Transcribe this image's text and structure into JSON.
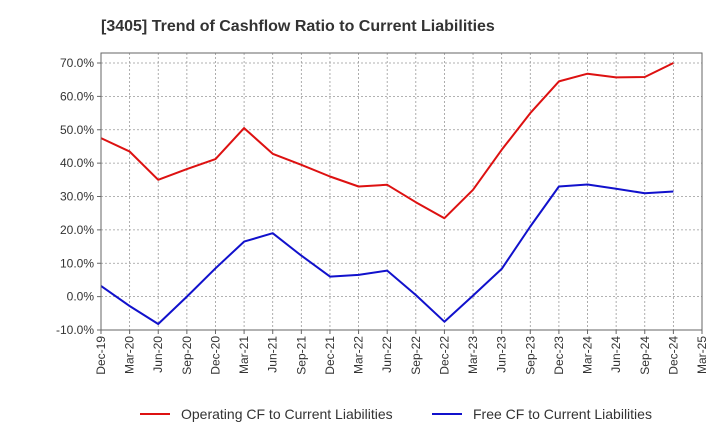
{
  "chart_data": {
    "type": "line",
    "title": "[3405]  Trend of Cashflow Ratio to Current Liabilities",
    "xlabel": "",
    "ylabel": "",
    "categories": [
      "Dec-19",
      "Mar-20",
      "Jun-20",
      "Sep-20",
      "Dec-20",
      "Mar-21",
      "Jun-21",
      "Sep-21",
      "Dec-21",
      "Mar-22",
      "Jun-22",
      "Sep-22",
      "Dec-22",
      "Mar-23",
      "Jun-23",
      "Sep-23",
      "Dec-23",
      "Mar-24",
      "Jun-24",
      "Sep-24",
      "Dec-24",
      "Mar-25"
    ],
    "ylim": [
      -10,
      73
    ],
    "yticks": [
      -10,
      0,
      10,
      20,
      30,
      40,
      50,
      60,
      70
    ],
    "ytick_labels": [
      "-10.0%",
      "0.0%",
      "10.0%",
      "20.0%",
      "30.0%",
      "40.0%",
      "50.0%",
      "60.0%",
      "70.0%"
    ],
    "grid": true,
    "legend_position": "bottom",
    "series": [
      {
        "name": "Operating CF to Current Liabilities",
        "color": "#dd1111",
        "values": [
          47.5,
          43.5,
          35.0,
          38.2,
          41.2,
          50.5,
          42.8,
          39.5,
          36.0,
          33.0,
          33.5,
          28.3,
          23.5,
          32.0,
          44.0,
          55.0,
          64.5,
          66.8,
          65.7,
          65.8,
          70.0,
          null
        ]
      },
      {
        "name": "Free CF to Current Liabilities",
        "color": "#1111cc",
        "values": [
          3.2,
          -2.8,
          -8.2,
          0.0,
          8.5,
          16.5,
          19.0,
          12.3,
          6.0,
          6.5,
          7.8,
          0.5,
          -7.5,
          0.3,
          8.3,
          21.0,
          33.0,
          33.6,
          32.3,
          31.0,
          31.5,
          null
        ]
      }
    ]
  }
}
